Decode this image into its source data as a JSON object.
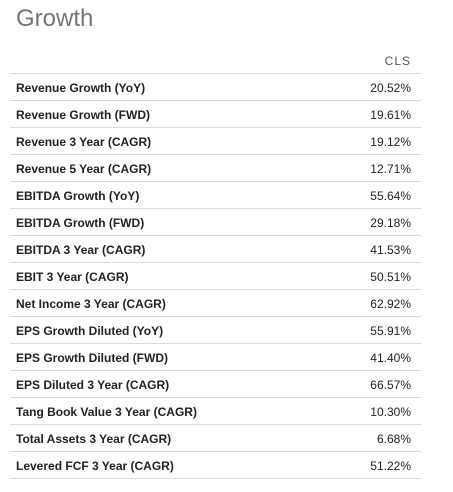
{
  "section": {
    "title": "Growth"
  },
  "table": {
    "column_header": "CLS",
    "rows": [
      {
        "label": "Revenue Growth (YoY)",
        "value": "20.52%"
      },
      {
        "label": "Revenue Growth (FWD)",
        "value": "19.61%"
      },
      {
        "label": "Revenue 3 Year (CAGR)",
        "value": "19.12%"
      },
      {
        "label": "Revenue 5 Year (CAGR)",
        "value": "12.71%"
      },
      {
        "label": "EBITDA Growth (YoY)",
        "value": "55.64%"
      },
      {
        "label": "EBITDA Growth (FWD)",
        "value": "29.18%"
      },
      {
        "label": "EBITDA 3 Year (CAGR)",
        "value": "41.53%"
      },
      {
        "label": "EBIT 3 Year (CAGR)",
        "value": "50.51%"
      },
      {
        "label": "Net Income 3 Year (CAGR)",
        "value": "62.92%"
      },
      {
        "label": "EPS Growth Diluted (YoY)",
        "value": "55.91%"
      },
      {
        "label": "EPS Growth Diluted (FWD)",
        "value": "41.40%"
      },
      {
        "label": "EPS Diluted 3 Year (CAGR)",
        "value": "66.57%"
      },
      {
        "label": "Tang Book Value 3 Year (CAGR)",
        "value": "10.30%"
      },
      {
        "label": "Total Assets 3 Year (CAGR)",
        "value": "6.68%"
      },
      {
        "label": "Levered FCF 3 Year (CAGR)",
        "value": "51.22%"
      }
    ]
  }
}
